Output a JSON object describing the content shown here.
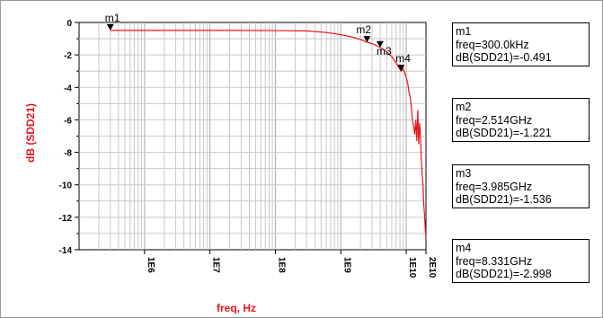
{
  "chart_data": {
    "type": "line",
    "xlabel": "freq, Hz",
    "ylabel": "dB (SDD21)",
    "x_scale": "log",
    "xlim": [
      100000,
      20000000000
    ],
    "ylim": [
      -14,
      0
    ],
    "x_ticks": [
      {
        "value": 1000000,
        "label": "1E6"
      },
      {
        "value": 10000000,
        "label": "1E7"
      },
      {
        "value": 100000000,
        "label": "1E8"
      },
      {
        "value": 1000000000,
        "label": "1E9"
      },
      {
        "value": 10000000000,
        "label": "1E10"
      },
      {
        "value": 20000000000,
        "label": "2E10"
      }
    ],
    "y_ticks": [
      0,
      -2,
      -4,
      -6,
      -8,
      -10,
      -12,
      -14
    ],
    "grid": true,
    "line_color": "#e8141c",
    "series": [
      {
        "x": [
          300000,
          1000000,
          10000000,
          100000000,
          300000000,
          600000000,
          1000000000,
          1500000000,
          2000000000,
          2514000000,
          3000000000,
          3985000000,
          5000000000,
          6000000000,
          7000000000,
          8331000000,
          9000000000,
          10000000000,
          10500000000,
          11000000000,
          11500000000,
          12000000000,
          12500000000,
          13000000000,
          13500000000,
          14000000000,
          14500000000,
          15000000000,
          15500000000,
          16000000000,
          16500000000,
          17000000000,
          17500000000,
          18000000000,
          18500000000,
          19000000000,
          19500000000,
          20000000000
        ],
        "y": [
          -0.491,
          -0.49,
          -0.49,
          -0.5,
          -0.52,
          -0.62,
          -0.75,
          -0.9,
          -1.05,
          -1.221,
          -1.3,
          -1.536,
          -1.8,
          -2.1,
          -2.5,
          -2.998,
          -2.85,
          -3.4,
          -3.7,
          -4.3,
          -4.6,
          -5.3,
          -6.1,
          -6.4,
          -6.9,
          -6.0,
          -7.3,
          -5.4,
          -7.5,
          -6.2,
          -7.0,
          -8.5,
          -9.4,
          -10.0,
          -11.2,
          -11.8,
          -12.7,
          -13.3
        ]
      }
    ],
    "markers": [
      {
        "name": "m1",
        "freq_label": "freq=300.0kHz",
        "value_label": "dB(SDD21)=-0.491",
        "x": 300000,
        "y": -0.491
      },
      {
        "name": "m2",
        "freq_label": "freq=2.514GHz",
        "value_label": "dB(SDD21)=-1.221",
        "x": 2514000000,
        "y": -1.221
      },
      {
        "name": "m3",
        "freq_label": "freq=3.985GHz",
        "value_label": "dB(SDD21)=-1.536",
        "x": 3985000000,
        "y": -1.536
      },
      {
        "name": "m4",
        "freq_label": "freq=8.331GHz",
        "value_label": "dB(SDD21)=-2.998",
        "x": 8331000000,
        "y": -2.998
      }
    ]
  }
}
